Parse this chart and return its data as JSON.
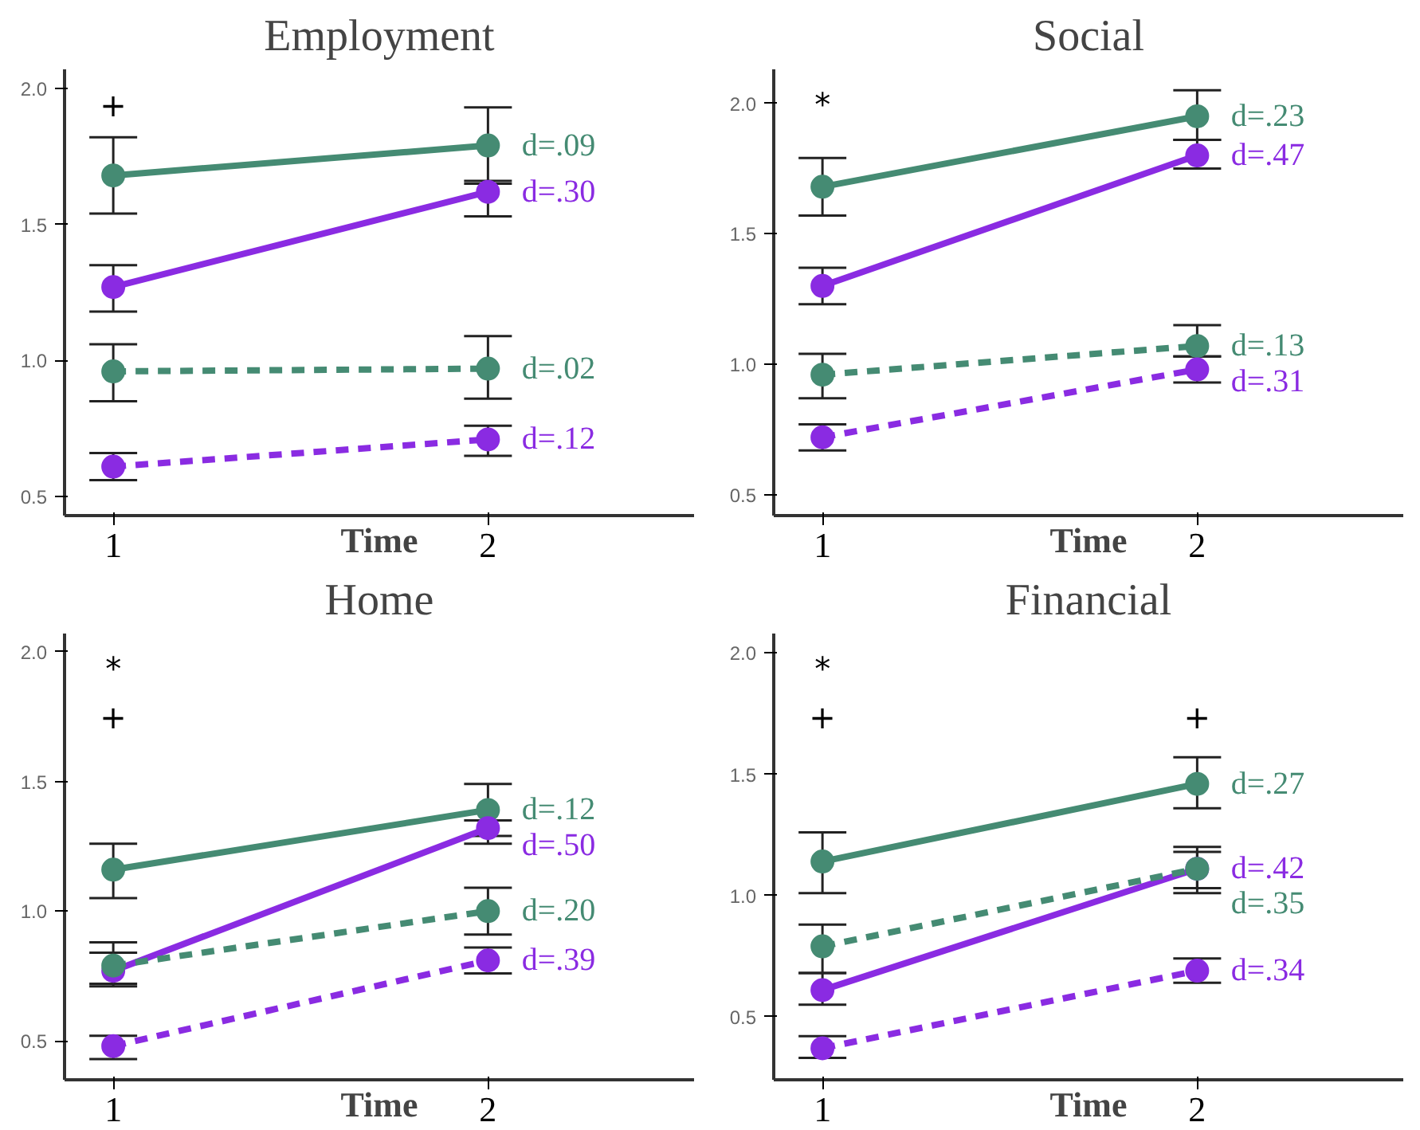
{
  "chart_data": [
    {
      "type": "line",
      "title": "Employment",
      "xlabel": "Time",
      "categories": [
        "1",
        "2"
      ],
      "ylim": [
        0.43,
        2.07
      ],
      "yticks": [
        {
          "value": 0.5,
          "label": "0.5"
        },
        {
          "value": 1.0,
          "label": "1.0"
        },
        {
          "value": 1.5,
          "label": "1.5"
        },
        {
          "value": 2.0,
          "label": "2.0"
        }
      ],
      "grid": false,
      "marker": "circle",
      "series": [
        {
          "color": "#458b73",
          "line_style": "solid",
          "values": [
            1.68,
            1.79
          ],
          "errors": [
            [
              1.54,
              1.82
            ],
            [
              1.66,
              1.93
            ]
          ]
        },
        {
          "color": "#8a2be2",
          "line_style": "solid",
          "values": [
            1.27,
            1.62
          ],
          "errors": [
            [
              1.18,
              1.35
            ],
            [
              1.53,
              1.65
            ]
          ]
        },
        {
          "color": "#458b73",
          "line_style": "dashed",
          "values": [
            0.96,
            0.97
          ],
          "errors": [
            [
              0.85,
              1.06
            ],
            [
              0.86,
              1.09
            ]
          ]
        },
        {
          "color": "#8a2be2",
          "line_style": "dashed",
          "values": [
            0.61,
            0.71
          ],
          "errors": [
            [
              0.56,
              0.66
            ],
            [
              0.65,
              0.76
            ]
          ]
        }
      ],
      "annotations": [
        {
          "text": "d=.09",
          "x": "2",
          "y": 1.79
        },
        {
          "text": "d=.30",
          "x": "2",
          "y": 1.62
        },
        {
          "text": "d=.02",
          "x": "2",
          "y": 0.97
        },
        {
          "text": "d=.12",
          "x": "2",
          "y": 0.71
        },
        "+"
      ]
    },
    {
      "type": "line",
      "title": "Social",
      "xlabel": "Time",
      "categories": [
        "1",
        "2"
      ],
      "ylim": [
        0.42,
        2.13
      ],
      "yticks": [
        {
          "value": 0.5,
          "label": "0.5"
        },
        {
          "value": 1.0,
          "label": "1.0"
        },
        {
          "value": 1.5,
          "label": "1.5"
        },
        {
          "value": 2.0,
          "label": "2.0"
        }
      ],
      "grid": false,
      "marker": "circle",
      "series": [
        {
          "color": "#458b73",
          "line_style": "solid",
          "values": [
            1.68,
            1.95
          ],
          "errors": [
            [
              1.57,
              1.79
            ],
            [
              1.86,
              2.05
            ]
          ]
        },
        {
          "color": "#8a2be2",
          "line_style": "solid",
          "values": [
            1.3,
            1.8
          ],
          "errors": [
            [
              1.23,
              1.37
            ],
            [
              1.75,
              1.86
            ]
          ]
        },
        {
          "color": "#458b73",
          "line_style": "dashed",
          "values": [
            0.96,
            1.07
          ],
          "errors": [
            [
              0.87,
              1.04
            ],
            [
              1.03,
              1.15
            ]
          ]
        },
        {
          "color": "#8a2be2",
          "line_style": "dashed",
          "values": [
            0.72,
            0.98
          ],
          "errors": [
            [
              0.67,
              0.77
            ],
            [
              0.93,
              1.03
            ]
          ]
        }
      ],
      "annotations": [
        {
          "text": "d=.23",
          "x": "2",
          "y": 1.95
        },
        {
          "text": "d=.47",
          "x": "2",
          "y": 1.8
        },
        {
          "text": "d=.13",
          "x": "2",
          "y": 1.07
        },
        {
          "text": "d=.31",
          "x": "2",
          "y": 0.98
        },
        "*"
      ]
    },
    {
      "type": "line",
      "title": "Home",
      "xlabel": "Time",
      "categories": [
        "1",
        "2"
      ],
      "ylim": [
        0.35,
        2.07
      ],
      "yticks": [
        {
          "value": 0.5,
          "label": "0.5"
        },
        {
          "value": 1.0,
          "label": "1.0"
        },
        {
          "value": 1.5,
          "label": "1.5"
        },
        {
          "value": 2.0,
          "label": "2.0"
        }
      ],
      "grid": false,
      "marker": "circle",
      "series": [
        {
          "color": "#458b73",
          "line_style": "solid",
          "values": [
            1.16,
            1.39
          ],
          "errors": [
            [
              1.05,
              1.26
            ],
            [
              1.29,
              1.49
            ]
          ]
        },
        {
          "color": "#8a2be2",
          "line_style": "solid",
          "values": [
            0.77,
            1.32
          ],
          "errors": [
            [
              0.72,
              0.84
            ],
            [
              1.26,
              1.35
            ]
          ]
        },
        {
          "color": "#458b73",
          "line_style": "dashed",
          "values": [
            0.79,
            1.0
          ],
          "errors": [
            [
              0.71,
              0.88
            ],
            [
              0.91,
              1.09
            ]
          ]
        },
        {
          "color": "#8a2be2",
          "line_style": "dashed",
          "values": [
            0.48,
            0.81
          ],
          "errors": [
            [
              0.43,
              0.52
            ],
            [
              0.76,
              0.86
            ]
          ]
        }
      ],
      "annotations": [
        {
          "text": "d=.12",
          "x": "2",
          "y": 1.39
        },
        {
          "text": "d=.50",
          "x": "2",
          "y": 1.32
        },
        {
          "text": "d=.20",
          "x": "2",
          "y": 1.0
        },
        {
          "text": "d=.39",
          "x": "2",
          "y": 0.81
        },
        "*",
        "+"
      ]
    },
    {
      "type": "line",
      "title": "Financial",
      "xlabel": "Time",
      "categories": [
        "1",
        "2"
      ],
      "ylim": [
        0.24,
        2.08
      ],
      "yticks": [
        {
          "value": 0.5,
          "label": "0.5"
        },
        {
          "value": 1.0,
          "label": "1.0"
        },
        {
          "value": 1.5,
          "label": "1.5"
        },
        {
          "value": 2.0,
          "label": "2.0"
        }
      ],
      "grid": false,
      "marker": "circle",
      "series": [
        {
          "color": "#458b73",
          "line_style": "solid",
          "values": [
            1.14,
            1.46
          ],
          "errors": [
            [
              1.01,
              1.26
            ],
            [
              1.36,
              1.57
            ]
          ]
        },
        {
          "color": "#8a2be2",
          "line_style": "solid",
          "values": [
            0.61,
            1.11
          ],
          "errors": [
            [
              0.55,
              0.68
            ],
            [
              1.03,
              1.2
            ]
          ]
        },
        {
          "color": "#458b73",
          "line_style": "dashed",
          "values": [
            0.79,
            1.11
          ],
          "errors": [
            [
              0.68,
              0.88
            ],
            [
              1.01,
              1.18
            ]
          ]
        },
        {
          "color": "#8a2be2",
          "line_style": "dashed",
          "values": [
            0.37,
            0.69
          ],
          "errors": [
            [
              0.33,
              0.42
            ],
            [
              0.64,
              0.74
            ]
          ]
        }
      ],
      "annotations": [
        {
          "text": "d=.27",
          "x": "2",
          "y": 1.46
        },
        {
          "text": "d=.42",
          "x": "2",
          "y": 1.11
        },
        {
          "text": "d=.35",
          "x": "2",
          "y": 1.11
        },
        {
          "text": "d=.34",
          "x": "2",
          "y": 0.69
        },
        "*",
        "+",
        "+"
      ]
    }
  ]
}
